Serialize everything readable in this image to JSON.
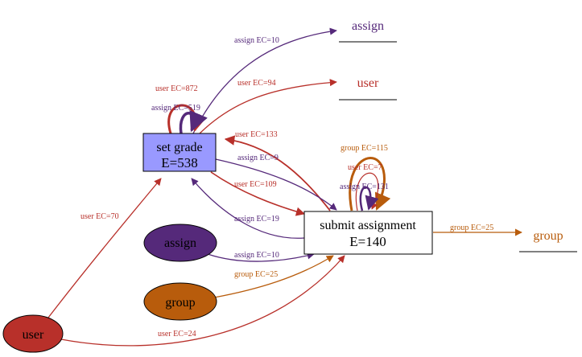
{
  "colors": {
    "purple": "#55297a",
    "red": "#b8302a",
    "orange": "#b85c0c",
    "set_grade_fill": "#9999ff",
    "user_fill": "#b8302a",
    "assign_fill": "#55297a",
    "group_fill": "#b85c0c"
  },
  "nodes": {
    "set_grade": {
      "line1": "set grade",
      "line2": "E=538"
    },
    "submit_assignment": {
      "line1": "submit assignment",
      "line2": "E=140"
    },
    "assign_out": {
      "label": "assign"
    },
    "user_out": {
      "label": "user"
    },
    "group_out": {
      "label": "group"
    },
    "assign_in": {
      "label": "assign"
    },
    "group_in": {
      "label": "group"
    },
    "user_in": {
      "label": "user"
    }
  },
  "edges": {
    "sg_to_assign": "assign EC=10",
    "sg_to_user": "user EC=94",
    "sg_self_user": "user EC=872",
    "sg_self_assign": "assign EC=519",
    "sa_to_sg_user": "user EC=133",
    "sg_to_sa_assign": "assign EC=9",
    "sg_to_sa_user": "user EC=109",
    "sa_to_sg_assign": "assign EC=19",
    "sa_self_group": "group EC=115",
    "sa_self_user": "user EC=7",
    "sa_self_assign": "assign EC=131",
    "sa_to_group": "group EC=25",
    "user_to_sg": "user EC=70",
    "assign_to_sa": "assign EC=10",
    "group_to_sa": "group EC=25",
    "user_to_sa": "user EC=24"
  }
}
